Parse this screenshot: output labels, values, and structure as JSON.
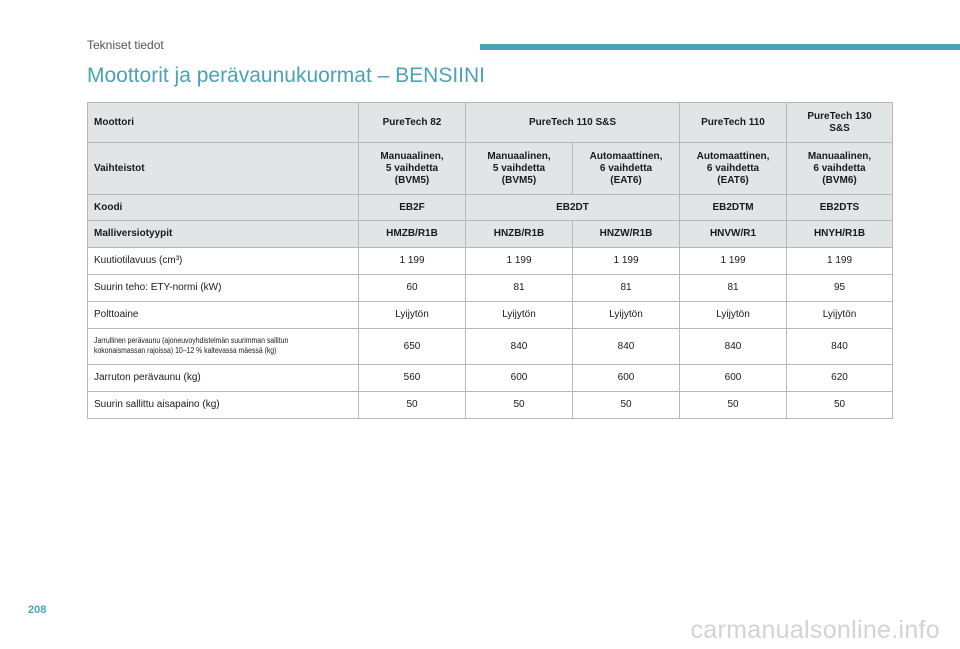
{
  "header": {
    "section_label": "Tekniset tiedot",
    "accent_color": "#4aa3b5",
    "title": "Moottorit ja perävaunukuormat – BENSIINI"
  },
  "table": {
    "rows": [
      {
        "kind": "hdr",
        "cells": [
          {
            "text": "Moottori"
          },
          {
            "text": "PureTech 82"
          },
          {
            "text": "PureTech 110 S&S",
            "span": 2
          },
          {
            "text": "PureTech 110"
          },
          {
            "text": "PureTech 130\nS&S"
          }
        ]
      },
      {
        "kind": "hdr",
        "cells": [
          {
            "text": "Vaihteistot"
          },
          {
            "text": "Manuaalinen,\n5 vaihdetta\n(BVM5)"
          },
          {
            "text": "Manuaalinen,\n5 vaihdetta\n(BVM5)"
          },
          {
            "text": "Automaattinen,\n6 vaihdetta\n(EAT6)"
          },
          {
            "text": "Automaattinen,\n6 vaihdetta\n(EAT6)"
          },
          {
            "text": "Manuaalinen,\n6 vaihdetta\n(BVM6)"
          }
        ]
      },
      {
        "kind": "hdr",
        "cells": [
          {
            "text": "Koodi"
          },
          {
            "text": "EB2F"
          },
          {
            "text": "EB2DT",
            "span": 2
          },
          {
            "text": "EB2DTM"
          },
          {
            "text": "EB2DTS"
          }
        ]
      },
      {
        "kind": "hdr",
        "cells": [
          {
            "text": "Malliversiotyypit"
          },
          {
            "text": "HMZB/R1B"
          },
          {
            "text": "HNZB/R1B"
          },
          {
            "text": "HNZW/R1B"
          },
          {
            "text": "HNVW/R1"
          },
          {
            "text": "HNYH/R1B"
          }
        ]
      },
      {
        "kind": "data",
        "cells": [
          {
            "text": "Kuutiotilavuus (cm³)"
          },
          {
            "text": "1 199"
          },
          {
            "text": "1 199"
          },
          {
            "text": "1 199"
          },
          {
            "text": "1 199"
          },
          {
            "text": "1 199"
          }
        ]
      },
      {
        "kind": "data",
        "cells": [
          {
            "text": "Suurin teho: ETY-normi (kW)"
          },
          {
            "text": "60"
          },
          {
            "text": "81"
          },
          {
            "text": "81"
          },
          {
            "text": "81"
          },
          {
            "text": "95"
          }
        ]
      },
      {
        "kind": "data",
        "cells": [
          {
            "text": "Polttoaine"
          },
          {
            "text": "Lyijytön"
          },
          {
            "text": "Lyijytön"
          },
          {
            "text": "Lyijytön"
          },
          {
            "text": "Lyijytön"
          },
          {
            "text": "Lyijytön"
          }
        ]
      },
      {
        "kind": "data",
        "small_label": true,
        "cells": [
          {
            "text": "Jarrullinen perävaunu (ajoneuvoyhdistelmän suurimman sallitun\nkokonaismassan rajoissa) 10–12 % kaltevassa mäessä (kg)"
          },
          {
            "text": "650"
          },
          {
            "text": "840"
          },
          {
            "text": "840"
          },
          {
            "text": "840"
          },
          {
            "text": "840"
          }
        ]
      },
      {
        "kind": "data",
        "cells": [
          {
            "text": "Jarruton perävaunu (kg)"
          },
          {
            "text": "560"
          },
          {
            "text": "600"
          },
          {
            "text": "600"
          },
          {
            "text": "600"
          },
          {
            "text": "620"
          }
        ]
      },
      {
        "kind": "data",
        "cells": [
          {
            "text": "Suurin sallittu aisapaino (kg)"
          },
          {
            "text": "50"
          },
          {
            "text": "50"
          },
          {
            "text": "50"
          },
          {
            "text": "50"
          },
          {
            "text": "50"
          }
        ]
      }
    ]
  },
  "footer": {
    "page_number": "208",
    "watermark": "carmanualsonline.info"
  }
}
